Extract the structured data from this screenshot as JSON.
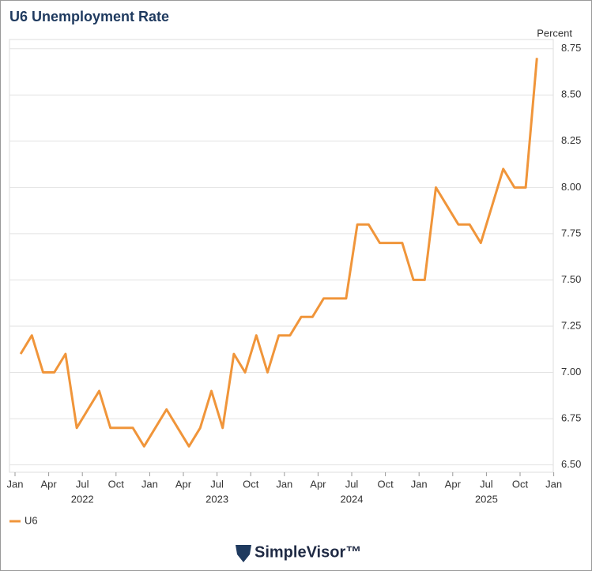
{
  "chart_data": {
    "type": "line",
    "title": "U6 Unemployment Rate",
    "y_axis_label": "Percent",
    "x": [
      "2022-01",
      "2022-02",
      "2022-03",
      "2022-04",
      "2022-05",
      "2022-06",
      "2022-07",
      "2022-08",
      "2022-09",
      "2022-10",
      "2022-11",
      "2022-12",
      "2023-01",
      "2023-02",
      "2023-03",
      "2023-04",
      "2023-05",
      "2023-06",
      "2023-07",
      "2023-08",
      "2023-09",
      "2023-10",
      "2023-11",
      "2023-12",
      "2024-01",
      "2024-02",
      "2024-03",
      "2024-04",
      "2024-05",
      "2024-06",
      "2024-07",
      "2024-08",
      "2024-09",
      "2024-10",
      "2024-11",
      "2024-12",
      "2025-01",
      "2025-02",
      "2025-03",
      "2025-04",
      "2025-05",
      "2025-06",
      "2025-07",
      "2025-08",
      "2025-09",
      "2025-10",
      "2025-11"
    ],
    "series": [
      {
        "name": "U6",
        "color": "#f0953a",
        "values": [
          7.1,
          7.2,
          7.0,
          7.0,
          7.1,
          6.7,
          6.8,
          6.9,
          6.7,
          6.7,
          6.7,
          6.6,
          6.7,
          6.8,
          6.7,
          6.6,
          6.7,
          6.9,
          6.7,
          7.1,
          7.0,
          7.2,
          7.0,
          7.2,
          7.2,
          7.3,
          7.3,
          7.4,
          7.4,
          7.4,
          7.8,
          7.8,
          7.7,
          7.7,
          7.7,
          7.5,
          7.5,
          8.0,
          7.9,
          7.8,
          7.8,
          7.7,
          7.9,
          8.1,
          8.0,
          8.0,
          8.7
        ]
      }
    ],
    "ylim": [
      6.46,
      8.8
    ],
    "yticks": [
      {
        "value": 6.5,
        "label": "6.50"
      },
      6.75,
      {
        "value": 7.0,
        "label": "7.00"
      },
      7.25,
      {
        "value": 7.5,
        "label": "7.50"
      },
      7.75,
      {
        "value": 8.0,
        "label": "8.00"
      },
      8.25,
      {
        "value": 8.5,
        "label": "8.50"
      },
      8.75
    ],
    "xticks": [
      {
        "value": "2022-01",
        "label": "Jan"
      },
      {
        "value": "2022-04",
        "label": "Apr"
      },
      {
        "value": "2022-07",
        "label": "Jul"
      },
      {
        "value": "2022-10",
        "label": "Oct"
      },
      {
        "value": "2023-01",
        "label": "Jan"
      },
      {
        "value": "2023-04",
        "label": "Apr"
      },
      {
        "value": "2023-07",
        "label": "Jul"
      },
      {
        "value": "2023-10",
        "label": "Oct"
      },
      {
        "value": "2024-01",
        "label": "Jan"
      },
      {
        "value": "2024-04",
        "label": "Apr"
      },
      {
        "value": "2024-07",
        "label": "Jul"
      },
      {
        "value": "2024-10",
        "label": "Oct"
      },
      {
        "value": "2025-01",
        "label": "Jan"
      },
      {
        "value": "2025-04",
        "label": "Apr"
      },
      {
        "value": "2025-07",
        "label": "Jul"
      },
      {
        "value": "2025-10",
        "label": "Oct"
      },
      {
        "value": "2026-01",
        "label": "Jan"
      }
    ],
    "year_labels": [
      "2022",
      "2023",
      "2024",
      "2025"
    ],
    "grid": true,
    "legend": "bottom-left",
    "brand": "SimpleVisor™"
  }
}
